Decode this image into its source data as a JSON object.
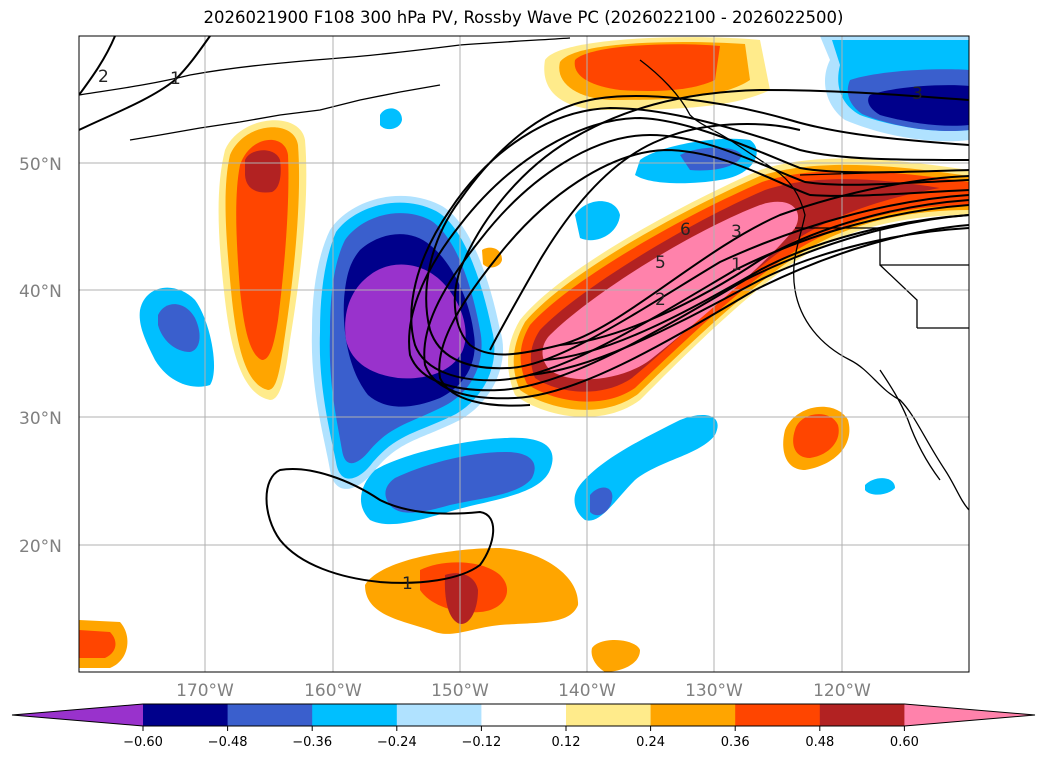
{
  "title": "2026021900 F108 300 hPa PV, Rossby Wave PC (2026022100 - 2026022500)",
  "latitude_labels": [
    "50°N",
    "40°N",
    "30°N",
    "20°N"
  ],
  "longitude_labels": [
    "170°W",
    "160°W",
    "150°W",
    "140°W",
    "130°W",
    "120°W"
  ],
  "colorbar": {
    "ticks": [
      "−0.60",
      "−0.48",
      "−0.36",
      "−0.24",
      "−0.12",
      "0.12",
      "0.24",
      "0.36",
      "0.48",
      "0.60"
    ],
    "colors": [
      "#9932cc",
      "#00008b",
      "#3a5fcd",
      "#00bfff",
      "#b0e2ff",
      "#ffffff",
      "#ffeb8b",
      "#ffa500",
      "#ff4500",
      "#b22222",
      "#ff82ab"
    ]
  },
  "contour_labels": [
    "2",
    "1",
    "3",
    "6",
    "5",
    "3",
    "1",
    "2",
    "1"
  ]
}
